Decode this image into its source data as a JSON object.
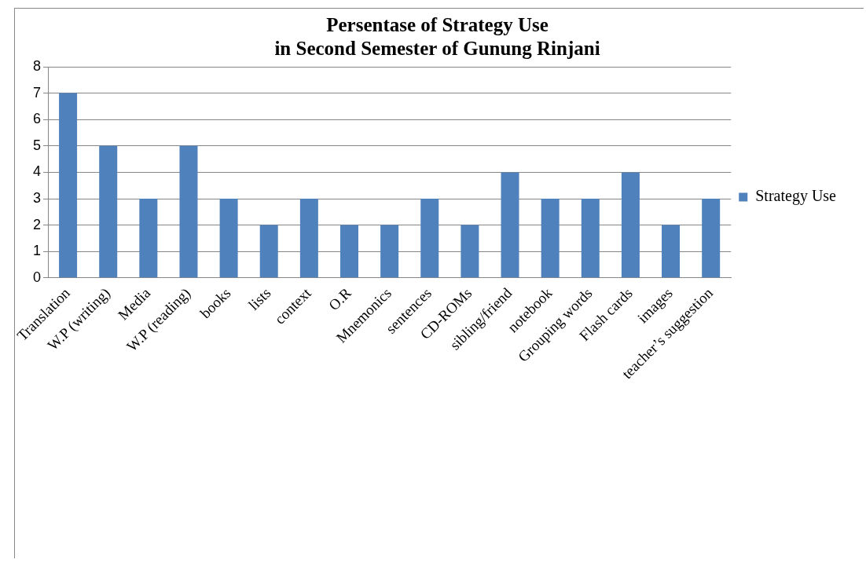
{
  "chart_data": {
    "type": "bar",
    "title": [
      "Persentase of Strategy Use",
      "in Second Semester of Gunung Rinjani"
    ],
    "categories": [
      "Translation",
      "W.P (writing)",
      "Media",
      "W.P (reading)",
      "books",
      "lists",
      "context",
      "O.R",
      "Mnemonics",
      "sentences",
      "CD-ROMs",
      "sibling/friend",
      "notebook",
      "Grouping words",
      "Flash cards",
      "images",
      "teacher’s suggestion"
    ],
    "series": [
      {
        "name": "Strategy Use",
        "color": "#4f81bd",
        "values": [
          7,
          5,
          3,
          5,
          3,
          2,
          3,
          2,
          2,
          3,
          2,
          4,
          3,
          3,
          4,
          2,
          3
        ]
      }
    ],
    "ylim": [
      0,
      8
    ],
    "yticks": [
      0,
      1,
      2,
      3,
      4,
      5,
      6,
      7,
      8
    ],
    "grid": "y",
    "legend": "right"
  }
}
